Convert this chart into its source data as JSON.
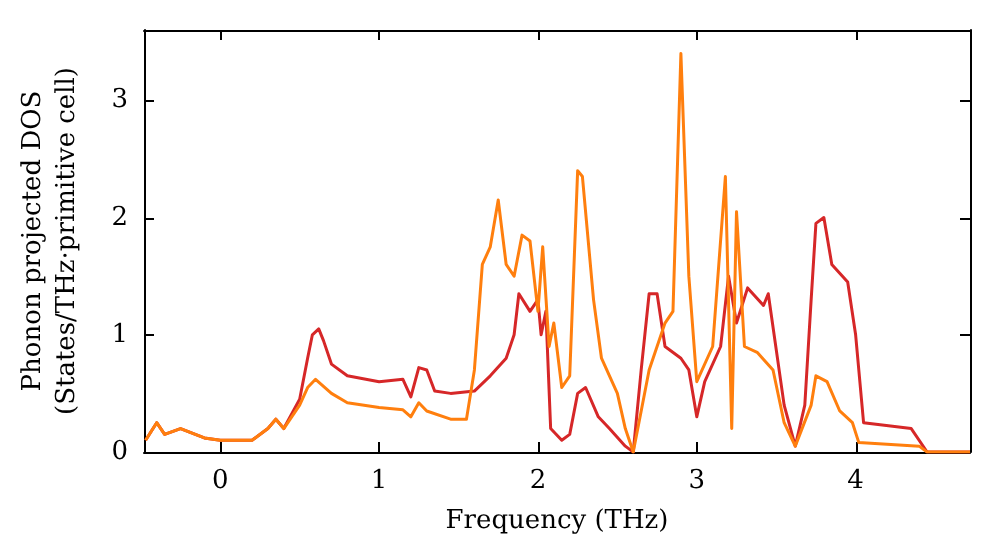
{
  "chart_data": {
    "type": "line",
    "xlabel": "Frequency (THz)",
    "ylabel": "Phonon projected DOS\n(States/THz·primitive cell)",
    "xlim": [
      -0.48,
      4.72
    ],
    "ylim": [
      0,
      3.6
    ],
    "xticks": [
      0,
      1,
      2,
      3,
      4
    ],
    "yticks": [
      0,
      1,
      2,
      3
    ],
    "grid": false,
    "marker": "none",
    "line_style": "solid",
    "series": [
      {
        "color": "#d62728",
        "x": [
          -0.47,
          -0.4,
          -0.35,
          -0.25,
          -0.1,
          0,
          0.2,
          0.3,
          0.35,
          0.4,
          0.5,
          0.55,
          0.58,
          0.62,
          0.65,
          0.7,
          0.8,
          1.0,
          1.15,
          1.2,
          1.25,
          1.3,
          1.35,
          1.45,
          1.6,
          1.7,
          1.8,
          1.85,
          1.88,
          1.95,
          2.0,
          2.02,
          2.05,
          2.08,
          2.15,
          2.2,
          2.25,
          2.3,
          2.38,
          2.45,
          2.55,
          2.6,
          2.65,
          2.7,
          2.75,
          2.8,
          2.9,
          2.95,
          3.0,
          3.05,
          3.15,
          3.2,
          3.25,
          3.32,
          3.42,
          3.45,
          3.55,
          3.62,
          3.68,
          3.72,
          3.75,
          3.8,
          3.85,
          3.95,
          4.0,
          4.05,
          4.35,
          4.45,
          4.72
        ],
        "values": [
          0.1,
          0.25,
          0.15,
          0.2,
          0.12,
          0.1,
          0.1,
          0.2,
          0.28,
          0.2,
          0.45,
          0.8,
          1.0,
          1.05,
          0.95,
          0.75,
          0.65,
          0.6,
          0.62,
          0.47,
          0.72,
          0.7,
          0.52,
          0.5,
          0.52,
          0.65,
          0.8,
          1.0,
          1.35,
          1.2,
          1.3,
          1.0,
          1.2,
          0.2,
          0.1,
          0.15,
          0.5,
          0.55,
          0.3,
          0.2,
          0.05,
          0,
          0.7,
          1.35,
          1.35,
          0.9,
          0.8,
          0.7,
          0.3,
          0.6,
          0.9,
          1.5,
          1.1,
          1.4,
          1.25,
          1.35,
          0.4,
          0.05,
          0.4,
          1.3,
          1.95,
          2.0,
          1.6,
          1.45,
          1.0,
          0.25,
          0.2,
          0,
          0
        ]
      },
      {
        "color": "#ff7f0e",
        "x": [
          -0.47,
          -0.4,
          -0.35,
          -0.25,
          -0.1,
          0,
          0.2,
          0.3,
          0.35,
          0.4,
          0.5,
          0.55,
          0.6,
          0.7,
          0.8,
          1.0,
          1.15,
          1.2,
          1.25,
          1.3,
          1.45,
          1.55,
          1.6,
          1.65,
          1.7,
          1.75,
          1.8,
          1.85,
          1.9,
          1.95,
          2.0,
          2.03,
          2.07,
          2.1,
          2.15,
          2.2,
          2.25,
          2.28,
          2.35,
          2.4,
          2.5,
          2.55,
          2.6,
          2.7,
          2.8,
          2.85,
          2.9,
          2.95,
          3.0,
          3.1,
          3.18,
          3.22,
          3.25,
          3.3,
          3.38,
          3.48,
          3.55,
          3.62,
          3.72,
          3.75,
          3.82,
          3.9,
          3.98,
          4.02,
          4.4,
          4.45,
          4.72
        ],
        "values": [
          0.1,
          0.25,
          0.15,
          0.2,
          0.12,
          0.1,
          0.1,
          0.2,
          0.28,
          0.2,
          0.4,
          0.55,
          0.62,
          0.5,
          0.42,
          0.38,
          0.36,
          0.3,
          0.42,
          0.35,
          0.28,
          0.28,
          0.7,
          1.6,
          1.75,
          2.15,
          1.6,
          1.5,
          1.85,
          1.8,
          1.2,
          1.75,
          0.9,
          1.1,
          0.55,
          0.65,
          2.4,
          2.35,
          1.3,
          0.8,
          0.5,
          0.2,
          0,
          0.7,
          1.1,
          1.2,
          3.4,
          1.5,
          0.6,
          0.9,
          2.35,
          0.2,
          2.05,
          0.9,
          0.85,
          0.7,
          0.25,
          0.05,
          0.4,
          0.65,
          0.6,
          0.35,
          0.25,
          0.08,
          0.05,
          0,
          0
        ]
      }
    ]
  }
}
